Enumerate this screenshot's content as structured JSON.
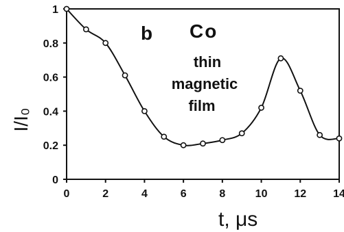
{
  "chart_data": {
    "type": "line",
    "title": "",
    "xlabel": "t, μs",
    "ylabel": "I/I₀",
    "xlim": [
      0,
      14
    ],
    "ylim": [
      0,
      1
    ],
    "xticks": [
      "0",
      "2",
      "4",
      "6",
      "8",
      "10",
      "12",
      "14"
    ],
    "yticks": [
      "0",
      "0.2",
      "0.4",
      "0.6",
      "0.8",
      "1"
    ],
    "grid": false,
    "annotations": {
      "panel": "b",
      "element": "Co",
      "sample_lines": [
        "thin",
        "magnetic",
        "film"
      ]
    },
    "series": [
      {
        "marker": "open-circle",
        "x": [
          0,
          1,
          2,
          3,
          4,
          5,
          6,
          7,
          8,
          9,
          10,
          11,
          12,
          13,
          14
        ],
        "y": [
          1.0,
          0.88,
          0.8,
          0.61,
          0.4,
          0.25,
          0.2,
          0.21,
          0.23,
          0.27,
          0.42,
          0.71,
          0.52,
          0.26,
          0.24
        ]
      }
    ],
    "colors": {
      "line": "#111111",
      "marker_fill": "#ffffff",
      "axis": "#111111"
    }
  }
}
